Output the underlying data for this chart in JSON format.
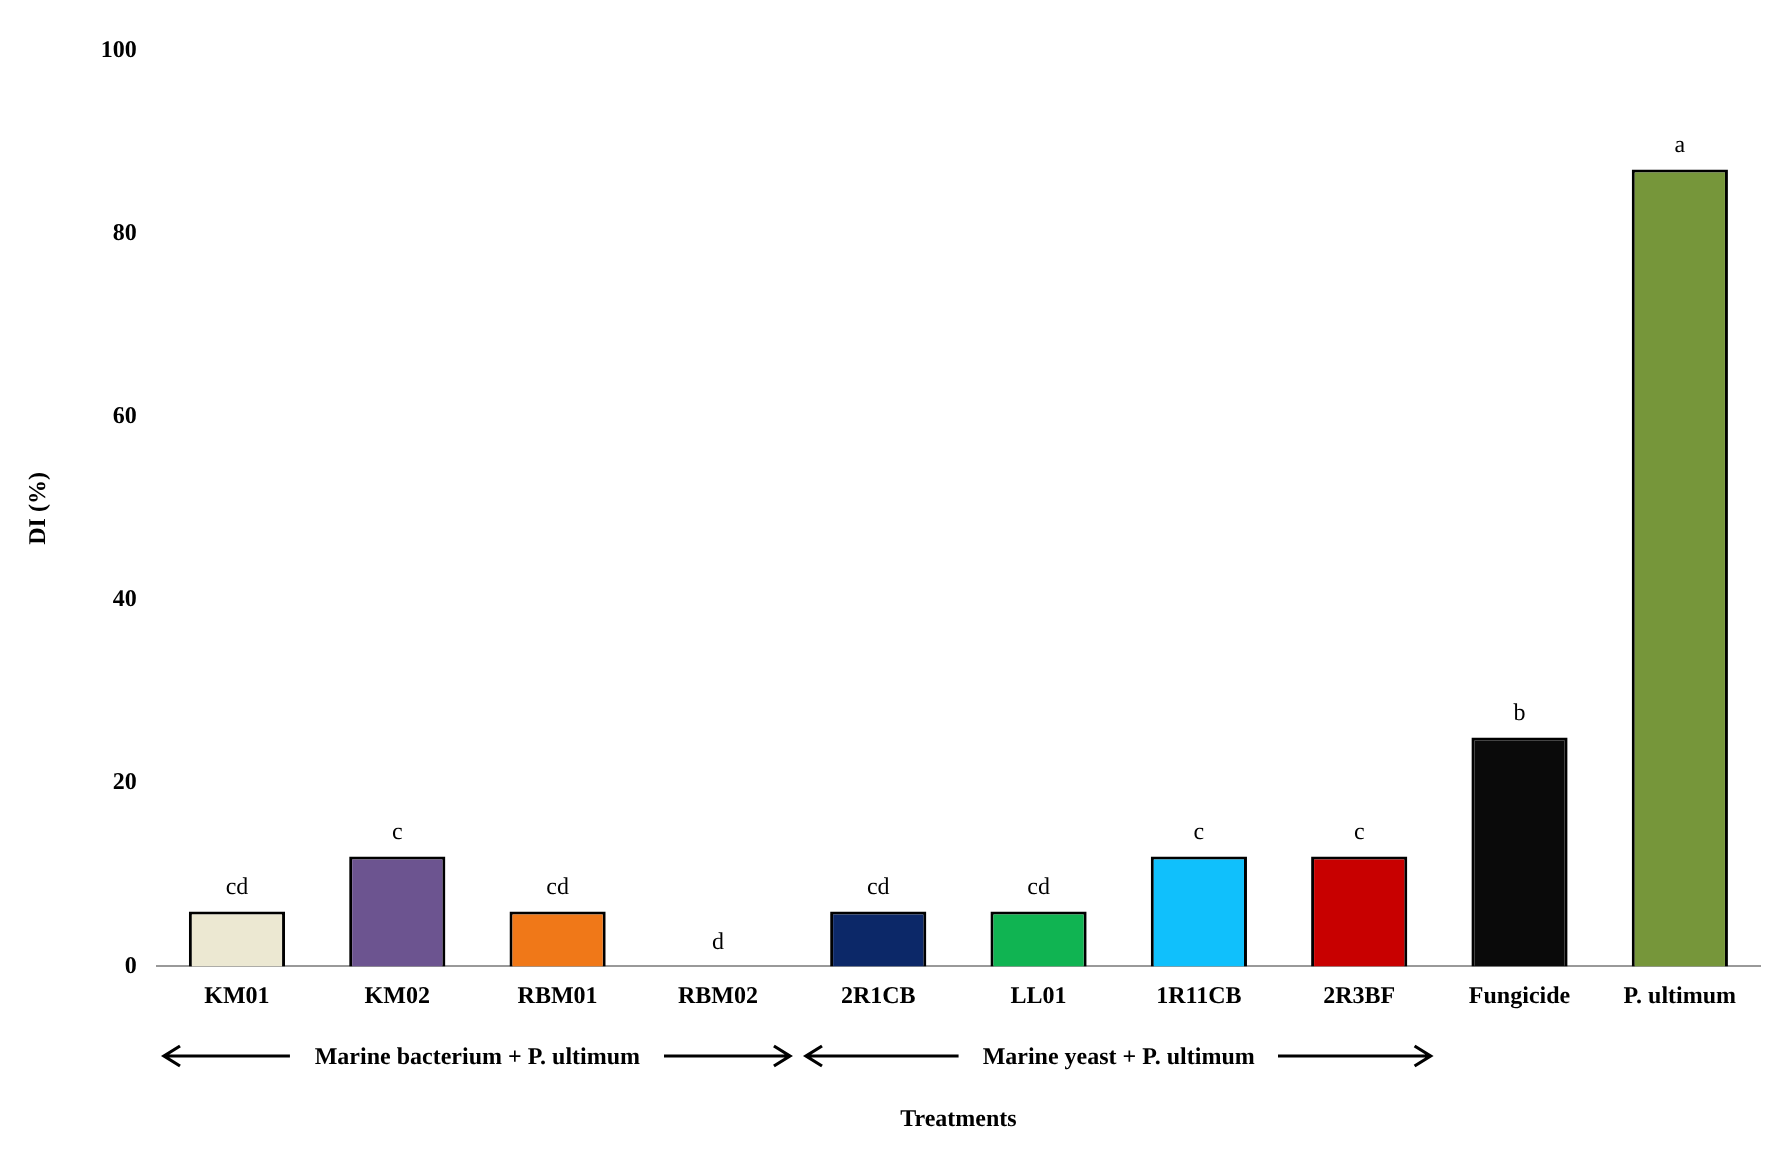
{
  "chart_data": {
    "type": "bar",
    "ylabel": "DI (%)",
    "xlabel": "Treatments",
    "categories": [
      "KM01",
      "KM02",
      "RBM01",
      "RBM02",
      "2R1CB",
      "LL01",
      "1R11CB",
      "2R3BF",
      "Fungicide",
      "P. ultimum"
    ],
    "values": [
      6,
      12,
      6,
      0,
      6,
      6,
      12,
      12,
      25,
      87
    ],
    "colors": [
      "#ece8d2",
      "#6c5490",
      "#f07818",
      "#ffffff",
      "#0c2868",
      "#10b452",
      "#10c0fc",
      "#c80000",
      "#0a0a0a",
      "#76963a"
    ],
    "value_labels": [
      "cd",
      "c",
      "cd",
      "d",
      "cd",
      "cd",
      "c",
      "c",
      "b",
      "a"
    ],
    "ylim": [
      0,
      100
    ],
    "yticks": [
      0,
      20,
      40,
      60,
      80,
      100
    ],
    "grid": false,
    "legend": false,
    "annotations": [
      "Marine bacterium + P. ultimum",
      "Marine yeast + P. ultimum"
    ]
  }
}
